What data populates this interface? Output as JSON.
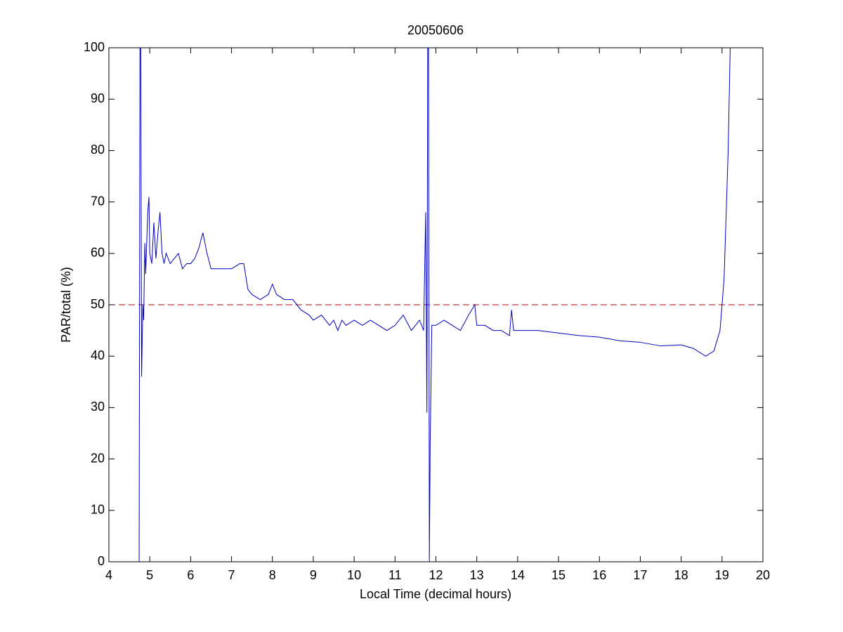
{
  "chart_data": {
    "type": "line",
    "title": "20050606",
    "x_label": "Local Time (decimal hours)",
    "y_label": "PAR/total (%)",
    "xlim": [
      4,
      20
    ],
    "ylim": [
      0,
      100
    ],
    "xticks": [
      4,
      5,
      6,
      7,
      8,
      9,
      10,
      11,
      12,
      13,
      14,
      15,
      16,
      17,
      18,
      19,
      20
    ],
    "yticks": [
      0,
      10,
      20,
      30,
      40,
      50,
      60,
      70,
      80,
      90,
      100
    ],
    "x": [
      4.74,
      4.76,
      4.78,
      4.8,
      4.83,
      4.85,
      4.88,
      4.9,
      4.95,
      4.98,
      5.0,
      5.05,
      5.1,
      5.15,
      5.2,
      5.25,
      5.3,
      5.35,
      5.4,
      5.5,
      5.6,
      5.7,
      5.8,
      5.9,
      6.0,
      6.1,
      6.2,
      6.3,
      6.4,
      6.5,
      6.6,
      6.8,
      7.0,
      7.2,
      7.3,
      7.4,
      7.5,
      7.7,
      7.9,
      8.0,
      8.1,
      8.3,
      8.5,
      8.7,
      8.9,
      9.0,
      9.2,
      9.4,
      9.5,
      9.6,
      9.7,
      9.8,
      10.0,
      10.2,
      10.4,
      10.6,
      10.8,
      11.0,
      11.2,
      11.4,
      11.6,
      11.7,
      11.75,
      11.78,
      11.8,
      11.82,
      11.84,
      11.86,
      11.9,
      12.0,
      12.2,
      12.4,
      12.6,
      12.8,
      12.95,
      13.0,
      13.2,
      13.4,
      13.6,
      13.8,
      13.85,
      13.9,
      14.0,
      14.5,
      15.0,
      15.5,
      16.0,
      16.5,
      17.0,
      17.5,
      18.0,
      18.3,
      18.6,
      18.8,
      18.95,
      19.05,
      19.15,
      19.2
    ],
    "series": [
      {
        "color": "#0000c0",
        "values": [
          0,
          100,
          100,
          36,
          50,
          47,
          62,
          56,
          68,
          71,
          60,
          58,
          66,
          59,
          64,
          68,
          60,
          58,
          60,
          58,
          59,
          60,
          57,
          58,
          58,
          59,
          61,
          64,
          60,
          57,
          57,
          57,
          57,
          58,
          58,
          53,
          52,
          51,
          52,
          54,
          52,
          51,
          51,
          49,
          48,
          47,
          48,
          46,
          47,
          45,
          47,
          46,
          47,
          46,
          47,
          46,
          45,
          46,
          48,
          45,
          47,
          45,
          68,
          29,
          100,
          100,
          0,
          23,
          46,
          46,
          47,
          46,
          45,
          48,
          50,
          46,
          46,
          45,
          45,
          44,
          49,
          45,
          45,
          45,
          44.5,
          44,
          43.7,
          43,
          42.7,
          42,
          42.2,
          41.5,
          40,
          41,
          45,
          55,
          80,
          100
        ]
      }
    ],
    "reference_line": {
      "value": 50,
      "color": "#c00000"
    }
  }
}
